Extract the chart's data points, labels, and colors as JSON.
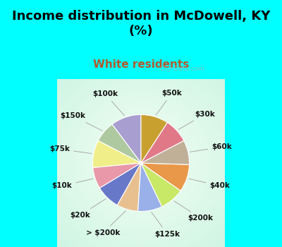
{
  "title": "Income distribution in McDowell, KY\n(%)",
  "subtitle": "White residents",
  "title_color": "#000000",
  "subtitle_color": "#b05a30",
  "background_cyan": "#00ffff",
  "watermark": "City-Data.com",
  "labels": [
    "$100k",
    "$150k",
    "$75k",
    "$10k",
    "$20k",
    "> $200k",
    "$125k",
    "$200k",
    "$40k",
    "$60k",
    "$30k",
    "$50k"
  ],
  "values": [
    10,
    7,
    9,
    7,
    8,
    7,
    8,
    8,
    9,
    8,
    8,
    9
  ],
  "colors": [
    "#a89fd0",
    "#aec8a0",
    "#f0ee88",
    "#e898a8",
    "#6878c8",
    "#e8c090",
    "#9ab0e8",
    "#c8e868",
    "#e89848",
    "#c0b098",
    "#e07888",
    "#c8a030"
  ],
  "label_fontsize": 7.5,
  "startangle": 90,
  "title_fontsize": 13,
  "subtitle_fontsize": 11
}
